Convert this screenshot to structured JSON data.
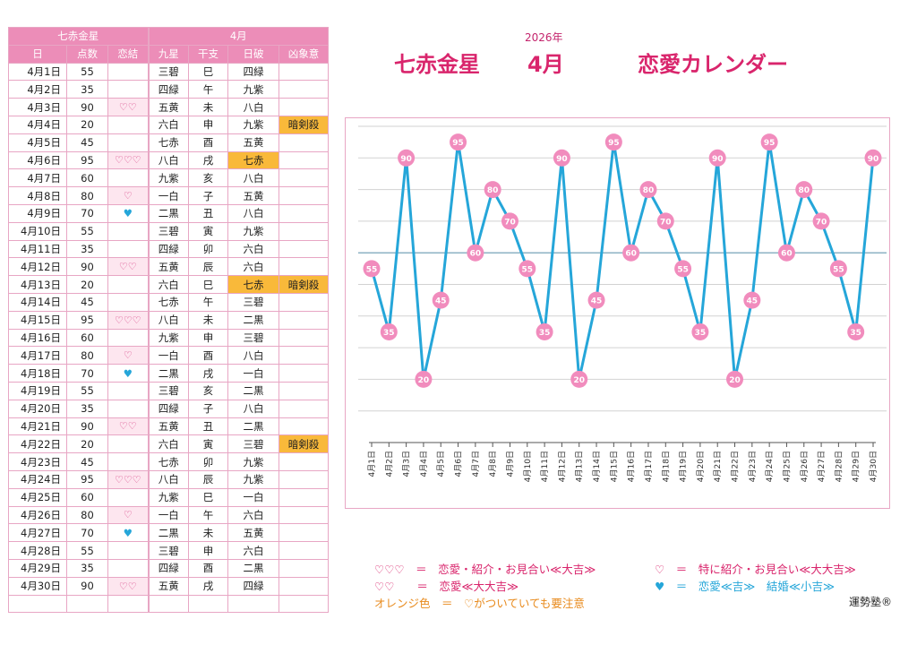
{
  "table": {
    "group_left": "七赤金星",
    "group_right": "4月",
    "headers": [
      "日",
      "点数",
      "恋結",
      "九星",
      "干支",
      "日破",
      "凶象意"
    ],
    "rows": [
      {
        "date": "4月1日",
        "score": "55",
        "mark": "",
        "mark_type": "",
        "kyusei": "三碧",
        "eto": "巳",
        "nichiha": "四緑",
        "nichiha_orange": false,
        "kyo": ""
      },
      {
        "date": "4月2日",
        "score": "35",
        "mark": "",
        "mark_type": "",
        "kyusei": "四緑",
        "eto": "午",
        "nichiha": "九紫",
        "nichiha_orange": false,
        "kyo": ""
      },
      {
        "date": "4月3日",
        "score": "90",
        "mark": "♡♡",
        "mark_type": "pink",
        "kyusei": "五黄",
        "eto": "未",
        "nichiha": "八白",
        "nichiha_orange": false,
        "kyo": ""
      },
      {
        "date": "4月4日",
        "score": "20",
        "mark": "",
        "mark_type": "",
        "kyusei": "六白",
        "eto": "申",
        "nichiha": "九紫",
        "nichiha_orange": false,
        "kyo": "暗剣殺"
      },
      {
        "date": "4月5日",
        "score": "45",
        "mark": "",
        "mark_type": "",
        "kyusei": "七赤",
        "eto": "酉",
        "nichiha": "五黄",
        "nichiha_orange": false,
        "kyo": ""
      },
      {
        "date": "4月6日",
        "score": "95",
        "mark": "♡♡♡",
        "mark_type": "pink",
        "kyusei": "八白",
        "eto": "戌",
        "nichiha": "七赤",
        "nichiha_orange": true,
        "kyo": ""
      },
      {
        "date": "4月7日",
        "score": "60",
        "mark": "",
        "mark_type": "",
        "kyusei": "九紫",
        "eto": "亥",
        "nichiha": "八白",
        "nichiha_orange": false,
        "kyo": ""
      },
      {
        "date": "4月8日",
        "score": "80",
        "mark": "♡",
        "mark_type": "pink",
        "kyusei": "一白",
        "eto": "子",
        "nichiha": "五黄",
        "nichiha_orange": false,
        "kyo": ""
      },
      {
        "date": "4月9日",
        "score": "70",
        "mark": "♥",
        "mark_type": "blue",
        "kyusei": "二黒",
        "eto": "丑",
        "nichiha": "八白",
        "nichiha_orange": false,
        "kyo": ""
      },
      {
        "date": "4月10日",
        "score": "55",
        "mark": "",
        "mark_type": "",
        "kyusei": "三碧",
        "eto": "寅",
        "nichiha": "九紫",
        "nichiha_orange": false,
        "kyo": ""
      },
      {
        "date": "4月11日",
        "score": "35",
        "mark": "",
        "mark_type": "",
        "kyusei": "四緑",
        "eto": "卯",
        "nichiha": "六白",
        "nichiha_orange": false,
        "kyo": ""
      },
      {
        "date": "4月12日",
        "score": "90",
        "mark": "♡♡",
        "mark_type": "pink",
        "kyusei": "五黄",
        "eto": "辰",
        "nichiha": "六白",
        "nichiha_orange": false,
        "kyo": ""
      },
      {
        "date": "4月13日",
        "score": "20",
        "mark": "",
        "mark_type": "",
        "kyusei": "六白",
        "eto": "巳",
        "nichiha": "七赤",
        "nichiha_orange": true,
        "kyo": "暗剣殺"
      },
      {
        "date": "4月14日",
        "score": "45",
        "mark": "",
        "mark_type": "",
        "kyusei": "七赤",
        "eto": "午",
        "nichiha": "三碧",
        "nichiha_orange": false,
        "kyo": ""
      },
      {
        "date": "4月15日",
        "score": "95",
        "mark": "♡♡♡",
        "mark_type": "pink",
        "kyusei": "八白",
        "eto": "未",
        "nichiha": "二黒",
        "nichiha_orange": false,
        "kyo": ""
      },
      {
        "date": "4月16日",
        "score": "60",
        "mark": "",
        "mark_type": "",
        "kyusei": "九紫",
        "eto": "申",
        "nichiha": "三碧",
        "nichiha_orange": false,
        "kyo": ""
      },
      {
        "date": "4月17日",
        "score": "80",
        "mark": "♡",
        "mark_type": "pink",
        "kyusei": "一白",
        "eto": "酉",
        "nichiha": "八白",
        "nichiha_orange": false,
        "kyo": ""
      },
      {
        "date": "4月18日",
        "score": "70",
        "mark": "♥",
        "mark_type": "blue",
        "kyusei": "二黒",
        "eto": "戌",
        "nichiha": "一白",
        "nichiha_orange": false,
        "kyo": ""
      },
      {
        "date": "4月19日",
        "score": "55",
        "mark": "",
        "mark_type": "",
        "kyusei": "三碧",
        "eto": "亥",
        "nichiha": "二黒",
        "nichiha_orange": false,
        "kyo": ""
      },
      {
        "date": "4月20日",
        "score": "35",
        "mark": "",
        "mark_type": "",
        "kyusei": "四緑",
        "eto": "子",
        "nichiha": "八白",
        "nichiha_orange": false,
        "kyo": ""
      },
      {
        "date": "4月21日",
        "score": "90",
        "mark": "♡♡",
        "mark_type": "pink",
        "kyusei": "五黄",
        "eto": "丑",
        "nichiha": "二黒",
        "nichiha_orange": false,
        "kyo": ""
      },
      {
        "date": "4月22日",
        "score": "20",
        "mark": "",
        "mark_type": "",
        "kyusei": "六白",
        "eto": "寅",
        "nichiha": "三碧",
        "nichiha_orange": false,
        "kyo": "暗剣殺"
      },
      {
        "date": "4月23日",
        "score": "45",
        "mark": "",
        "mark_type": "",
        "kyusei": "七赤",
        "eto": "卯",
        "nichiha": "九紫",
        "nichiha_orange": false,
        "kyo": ""
      },
      {
        "date": "4月24日",
        "score": "95",
        "mark": "♡♡♡",
        "mark_type": "pink",
        "kyusei": "八白",
        "eto": "辰",
        "nichiha": "九紫",
        "nichiha_orange": false,
        "kyo": ""
      },
      {
        "date": "4月25日",
        "score": "60",
        "mark": "",
        "mark_type": "",
        "kyusei": "九紫",
        "eto": "巳",
        "nichiha": "一白",
        "nichiha_orange": false,
        "kyo": ""
      },
      {
        "date": "4月26日",
        "score": "80",
        "mark": "♡",
        "mark_type": "pink",
        "kyusei": "一白",
        "eto": "午",
        "nichiha": "六白",
        "nichiha_orange": false,
        "kyo": ""
      },
      {
        "date": "4月27日",
        "score": "70",
        "mark": "♥",
        "mark_type": "blue",
        "kyusei": "二黒",
        "eto": "未",
        "nichiha": "五黄",
        "nichiha_orange": false,
        "kyo": ""
      },
      {
        "date": "4月28日",
        "score": "55",
        "mark": "",
        "mark_type": "",
        "kyusei": "三碧",
        "eto": "申",
        "nichiha": "六白",
        "nichiha_orange": false,
        "kyo": ""
      },
      {
        "date": "4月29日",
        "score": "35",
        "mark": "",
        "mark_type": "",
        "kyusei": "四緑",
        "eto": "酉",
        "nichiha": "二黒",
        "nichiha_orange": false,
        "kyo": ""
      },
      {
        "date": "4月30日",
        "score": "90",
        "mark": "♡♡",
        "mark_type": "pink",
        "kyusei": "五黄",
        "eto": "戌",
        "nichiha": "四緑",
        "nichiha_orange": false,
        "kyo": ""
      }
    ]
  },
  "header": {
    "year": "2026年",
    "star": "七赤金星",
    "month": "4月",
    "calendar": "恋愛カレンダー"
  },
  "chart_data": {
    "type": "line",
    "x": [
      "4月1日",
      "4月2日",
      "4月3日",
      "4月4日",
      "4月5日",
      "4月6日",
      "4月7日",
      "4月8日",
      "4月9日",
      "4月10日",
      "4月11日",
      "4月12日",
      "4月13日",
      "4月14日",
      "4月15日",
      "4月16日",
      "4月17日",
      "4月18日",
      "4月19日",
      "4月20日",
      "4月21日",
      "4月22日",
      "4月23日",
      "4月24日",
      "4月25日",
      "4月26日",
      "4月27日",
      "4月28日",
      "4月29日",
      "4月30日"
    ],
    "series": [
      {
        "values": [
          55,
          35,
          90,
          20,
          45,
          95,
          60,
          80,
          70,
          55,
          35,
          90,
          20,
          45,
          95,
          60,
          80,
          70,
          55,
          35,
          90,
          20,
          45,
          95,
          60,
          80,
          70,
          55,
          35,
          90
        ]
      }
    ],
    "ylim": [
      0,
      100
    ],
    "reference_line": 60,
    "grid": true,
    "colors": {
      "line": "#25a6d9",
      "marker": "#f18cbd",
      "reference": "#6fa1b8"
    }
  },
  "legend": {
    "l1_left": "♡♡♡　＝　恋愛・紹介・お見合い≪大吉≫",
    "l1_right": "♡　＝　特に紹介・お見合い≪大大吉≫",
    "l2_left": "♡♡　　＝　恋愛≪大大吉≫",
    "l2_right": "♥　＝　恋愛≪吉≫　結婚≪小吉≫",
    "l3_left": "オレンジ色　＝　♡がついていても要注意"
  },
  "credit": "運勢塾®"
}
